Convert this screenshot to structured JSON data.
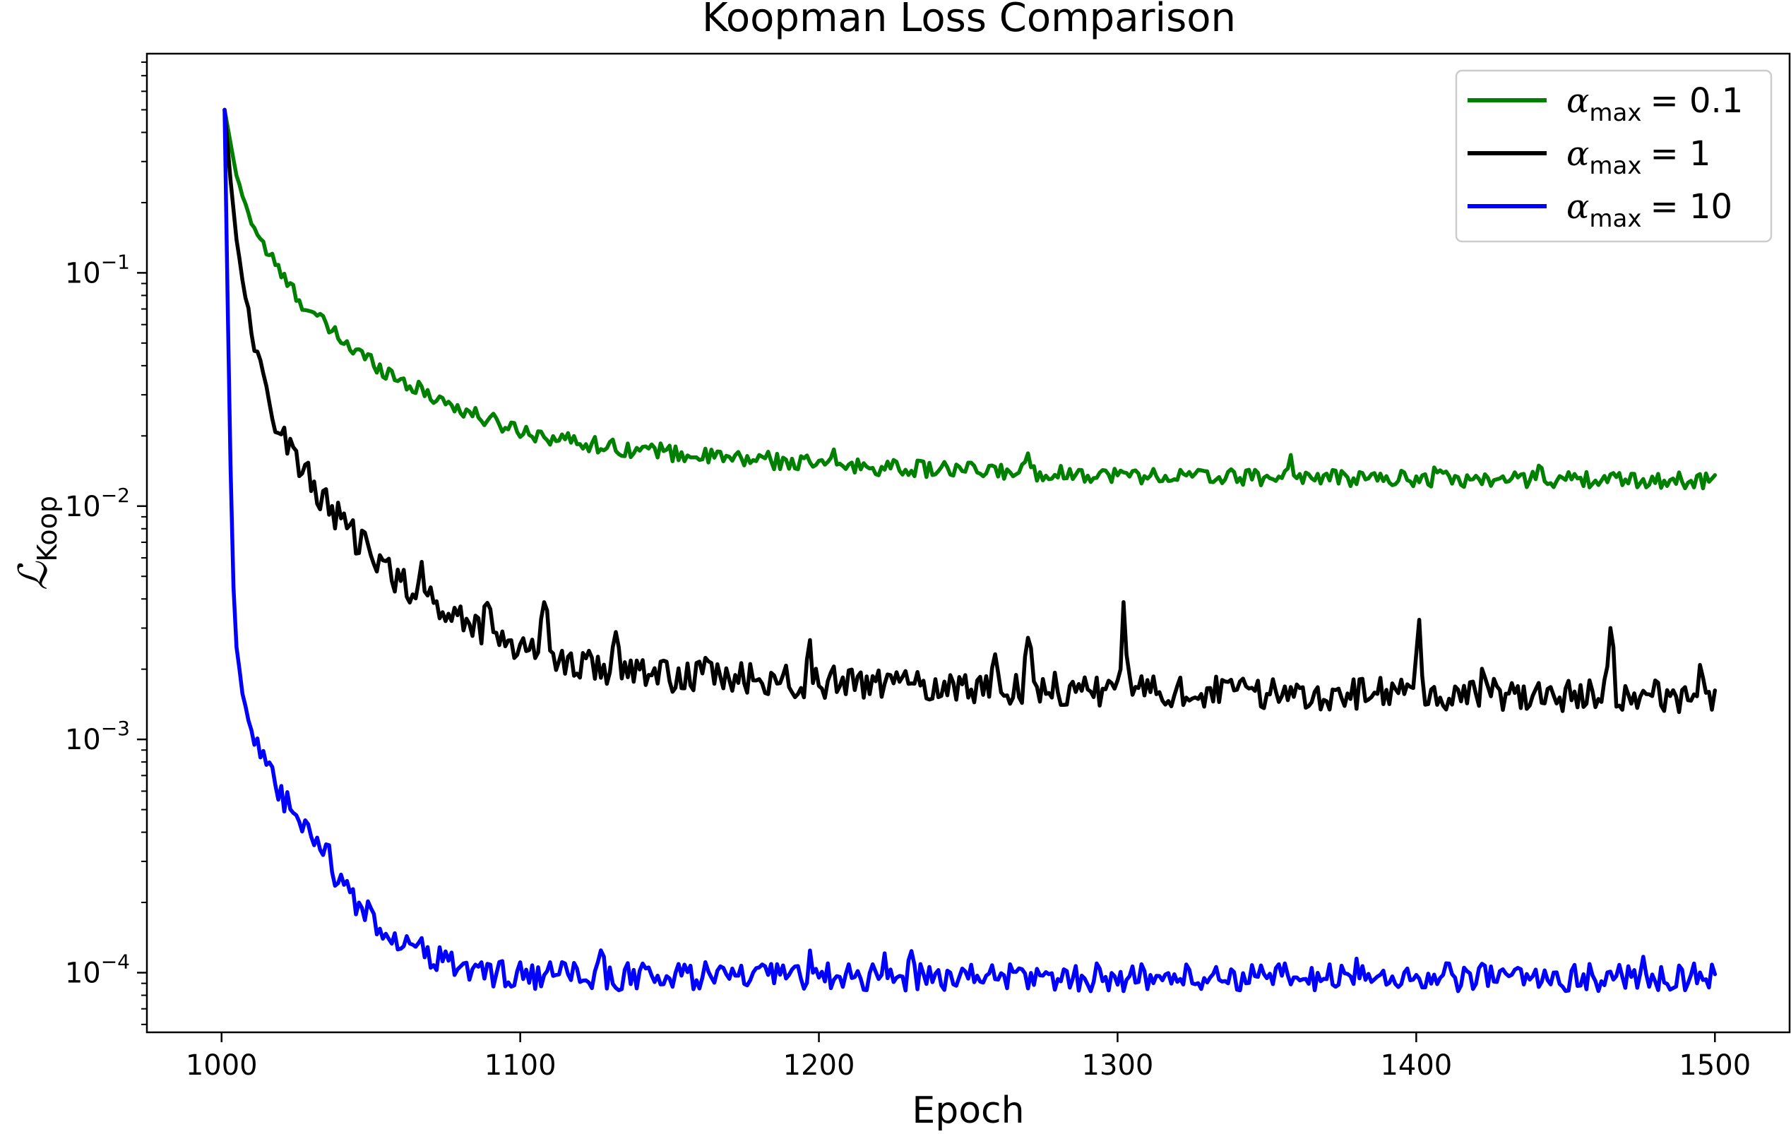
{
  "chart_data": {
    "type": "line",
    "title": "Koopman Loss Comparison",
    "xlabel": "Epoch",
    "ylabel_main": "ℒ",
    "ylabel_sub": "Koop",
    "yscale": "log",
    "xlim": [
      975,
      1525
    ],
    "ylim": [
      5.55e-05,
      0.87
    ],
    "grid": false,
    "legend_position": "top-right",
    "x_ticks": [
      {
        "value": 1000,
        "label": "1000"
      },
      {
        "value": 1100,
        "label": "1100"
      },
      {
        "value": 1200,
        "label": "1200"
      },
      {
        "value": 1300,
        "label": "1300"
      },
      {
        "value": 1400,
        "label": "1400"
      },
      {
        "value": 1500,
        "label": "1500"
      }
    ],
    "y_ticks": [
      {
        "value": 0.1,
        "base": "10",
        "exp": "−1"
      },
      {
        "value": 0.01,
        "base": "10",
        "exp": "−2"
      },
      {
        "value": 0.001,
        "base": "10",
        "exp": "−3"
      },
      {
        "value": 0.0001,
        "base": "10",
        "exp": "−4"
      }
    ],
    "series": [
      {
        "name": "α max = 0.1",
        "symbol": "α",
        "sub": "max",
        "value_text": "= 0.1",
        "color": "#008000",
        "points": [
          [
            1001,
            0.5
          ],
          [
            1005,
            0.26
          ],
          [
            1010,
            0.165
          ],
          [
            1015,
            0.125
          ],
          [
            1020,
            0.098
          ],
          [
            1025,
            0.08
          ],
          [
            1030,
            0.068
          ],
          [
            1035,
            0.059
          ],
          [
            1040,
            0.052
          ],
          [
            1045,
            0.046
          ],
          [
            1050,
            0.042
          ],
          [
            1055,
            0.038
          ],
          [
            1060,
            0.035
          ],
          [
            1065,
            0.032
          ],
          [
            1070,
            0.03
          ],
          [
            1075,
            0.028
          ],
          [
            1080,
            0.026
          ],
          [
            1085,
            0.0245
          ],
          [
            1090,
            0.0232
          ],
          [
            1095,
            0.0222
          ],
          [
            1100,
            0.0212
          ],
          [
            1110,
            0.0198
          ],
          [
            1120,
            0.0188
          ],
          [
            1130,
            0.018
          ],
          [
            1140,
            0.0174
          ],
          [
            1150,
            0.0168
          ],
          [
            1160,
            0.0164
          ],
          [
            1170,
            0.016
          ],
          [
            1180,
            0.0157
          ],
          [
            1190,
            0.0154
          ],
          [
            1200,
            0.0151
          ],
          [
            1225,
            0.0146
          ],
          [
            1250,
            0.0142
          ],
          [
            1275,
            0.0139
          ],
          [
            1300,
            0.0136
          ],
          [
            1325,
            0.0134
          ],
          [
            1350,
            0.0133
          ],
          [
            1375,
            0.0132
          ],
          [
            1400,
            0.0131
          ],
          [
            1425,
            0.013
          ],
          [
            1450,
            0.013
          ],
          [
            1475,
            0.0129
          ],
          [
            1500,
            0.0129
          ]
        ],
        "noise": 0.035,
        "spikes": [
          [
            1148,
            1.1
          ],
          [
            1183,
            1.1
          ],
          [
            1205,
            1.08
          ],
          [
            1270,
            1.2
          ],
          [
            1358,
            1.22
          ],
          [
            1407,
            1.15
          ],
          [
            1441,
            1.18
          ]
        ]
      },
      {
        "name": "α max = 1",
        "symbol": "α",
        "sub": "max",
        "value_text": "= 1",
        "color": "#000000",
        "points": [
          [
            1001,
            0.5
          ],
          [
            1003,
            0.25
          ],
          [
            1005,
            0.14
          ],
          [
            1008,
            0.08
          ],
          [
            1010,
            0.055
          ],
          [
            1013,
            0.038
          ],
          [
            1016,
            0.028
          ],
          [
            1020,
            0.021
          ],
          [
            1025,
            0.016
          ],
          [
            1030,
            0.0125
          ],
          [
            1035,
            0.0103
          ],
          [
            1040,
            0.0086
          ],
          [
            1045,
            0.0072
          ],
          [
            1050,
            0.0062
          ],
          [
            1055,
            0.0054
          ],
          [
            1060,
            0.0048
          ],
          [
            1065,
            0.0043
          ],
          [
            1070,
            0.0039
          ],
          [
            1075,
            0.0036
          ],
          [
            1080,
            0.0033
          ],
          [
            1085,
            0.0031
          ],
          [
            1090,
            0.0029
          ],
          [
            1095,
            0.0027
          ],
          [
            1100,
            0.0025
          ],
          [
            1110,
            0.0023
          ],
          [
            1120,
            0.0021
          ],
          [
            1130,
            0.002
          ],
          [
            1140,
            0.0019
          ],
          [
            1150,
            0.00188
          ],
          [
            1160,
            0.00185
          ],
          [
            1170,
            0.00182
          ],
          [
            1180,
            0.0018
          ],
          [
            1190,
            0.00178
          ],
          [
            1200,
            0.00176
          ],
          [
            1225,
            0.00172
          ],
          [
            1250,
            0.00168
          ],
          [
            1275,
            0.00165
          ],
          [
            1300,
            0.00162
          ],
          [
            1325,
            0.0016
          ],
          [
            1350,
            0.00158
          ],
          [
            1375,
            0.00157
          ],
          [
            1400,
            0.00156
          ],
          [
            1425,
            0.00155
          ],
          [
            1450,
            0.00154
          ],
          [
            1475,
            0.00154
          ],
          [
            1500,
            0.00153
          ]
        ],
        "noise": 0.07,
        "spikes": [
          [
            1067,
            1.25
          ],
          [
            1089,
            1.3
          ],
          [
            1108,
            1.9
          ],
          [
            1132,
            1.4
          ],
          [
            1162,
            1.35
          ],
          [
            1197,
            1.3
          ],
          [
            1259,
            1.25
          ],
          [
            1270,
            1.8
          ],
          [
            1302,
            2.05
          ],
          [
            1401,
            1.85
          ],
          [
            1423,
            1.3
          ],
          [
            1465,
            1.9
          ],
          [
            1495,
            1.3
          ]
        ]
      },
      {
        "name": "α max = 10",
        "symbol": "α",
        "sub": "max",
        "value_text": "= 10",
        "color": "#0000ff",
        "points": [
          [
            1001,
            0.5
          ],
          [
            1002,
            0.08
          ],
          [
            1003,
            0.015
          ],
          [
            1004,
            0.0045
          ],
          [
            1005,
            0.0025
          ],
          [
            1007,
            0.0016
          ],
          [
            1010,
            0.0011
          ],
          [
            1013,
            0.00085
          ],
          [
            1016,
            0.0007
          ],
          [
            1020,
            0.00057
          ],
          [
            1025,
            0.00046
          ],
          [
            1030,
            0.00037
          ],
          [
            1035,
            0.0003
          ],
          [
            1040,
            0.000245
          ],
          [
            1045,
            0.0002
          ],
          [
            1050,
            0.000172
          ],
          [
            1055,
            0.000152
          ],
          [
            1060,
            0.000138
          ],
          [
            1065,
            0.000127
          ],
          [
            1070,
            0.000118
          ],
          [
            1075,
            0.000111
          ],
          [
            1080,
            0.000106
          ],
          [
            1085,
            0.000102
          ],
          [
            1090,
            9.95e-05
          ],
          [
            1100,
            9.75e-05
          ],
          [
            1125,
            9.65e-05
          ],
          [
            1150,
            9.6e-05
          ],
          [
            1200,
            9.58e-05
          ],
          [
            1250,
            9.56e-05
          ],
          [
            1300,
            9.55e-05
          ],
          [
            1350,
            9.55e-05
          ],
          [
            1400,
            9.55e-05
          ],
          [
            1450,
            9.55e-05
          ],
          [
            1500,
            9.55e-05
          ]
        ],
        "noise": 0.06,
        "spikes": [
          [
            1036,
            1.15
          ],
          [
            1127,
            1.15
          ],
          [
            1163,
            1.2
          ],
          [
            1197,
            1.15
          ],
          [
            1222,
            1.18
          ],
          [
            1231,
            1.22
          ],
          [
            1258,
            1.15
          ],
          [
            1380,
            1.15
          ],
          [
            1476,
            1.2
          ]
        ]
      }
    ]
  }
}
